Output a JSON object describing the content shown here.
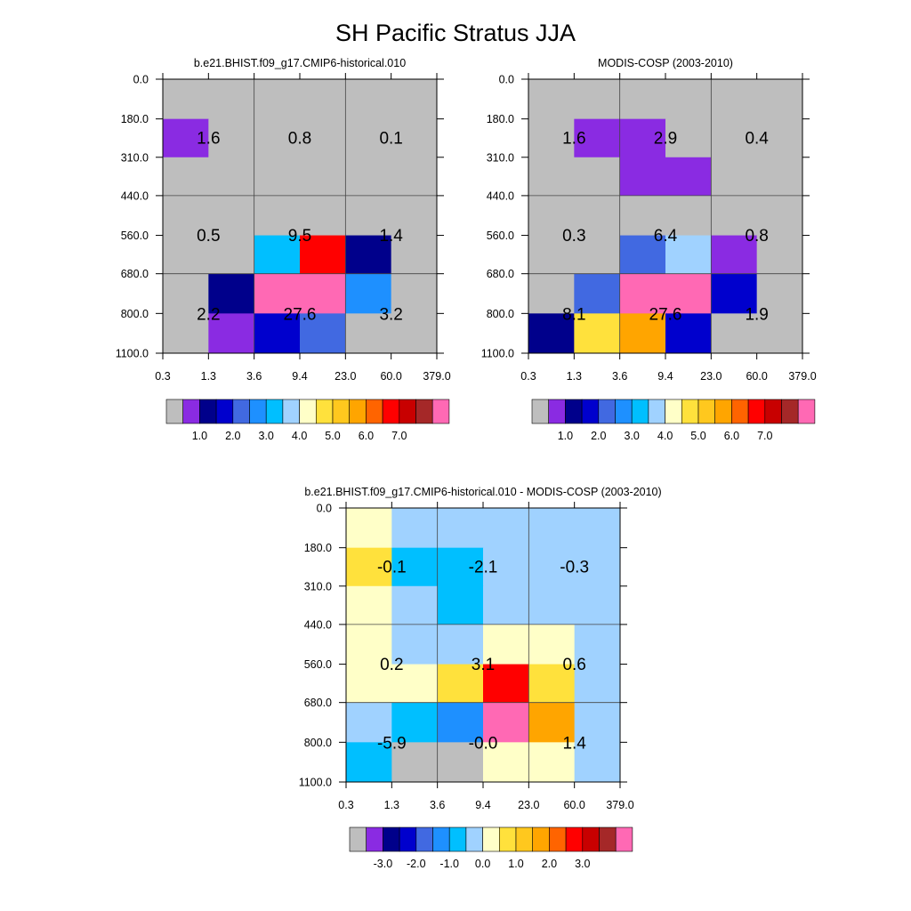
{
  "figure_title": "SH Pacific Stratus JJA",
  "chart_data": [
    {
      "type": "heatmap",
      "title": "b.e21.BHIST.f09_g17.CMIP6-historical.010",
      "x_ticks": [
        "0.3",
        "1.3",
        "3.6",
        "9.4",
        "23.0",
        "60.0",
        "379.0"
      ],
      "y_ticks": [
        "0.0",
        "180.0",
        "310.0",
        "440.0",
        "560.0",
        "680.0",
        "800.0",
        "1100.0"
      ],
      "cells": [
        [
          "missing",
          "missing",
          "missing",
          "missing",
          "missing",
          "missing"
        ],
        [
          "purple",
          "missing",
          "missing",
          "missing",
          "missing",
          "missing"
        ],
        [
          "missing",
          "missing",
          "missing",
          "missing",
          "missing",
          "missing"
        ],
        [
          "missing",
          "missing",
          "missing",
          "missing",
          "missing",
          "missing"
        ],
        [
          "missing",
          "missing",
          "deepskyblue",
          "red",
          "navy",
          "missing"
        ],
        [
          "missing",
          "navy",
          "pink",
          "pink",
          "dodgerblue",
          "missing"
        ],
        [
          "missing",
          "purple",
          "mediumblue",
          "royalblue",
          "missing",
          "missing"
        ]
      ],
      "annotations": [
        {
          "text": "1.6",
          "col": 0,
          "row": 0
        },
        {
          "text": "0.8",
          "col": 1,
          "row": 0
        },
        {
          "text": "0.1",
          "col": 2,
          "row": 0
        },
        {
          "text": "0.5",
          "col": 0,
          "row": 1
        },
        {
          "text": "9.5",
          "col": 1,
          "row": 1
        },
        {
          "text": "1.4",
          "col": 2,
          "row": 1
        },
        {
          "text": "2.2",
          "col": 0,
          "row": 2
        },
        {
          "text": "27.6",
          "col": 1,
          "row": 2
        },
        {
          "text": "3.2",
          "col": 2,
          "row": 2
        }
      ],
      "colorbar": {
        "colors": [
          "#bebebe",
          "#8a2be2",
          "#00008b",
          "#0000cd",
          "#4169e1",
          "#1e90ff",
          "#00bfff",
          "#a0d2ff",
          "#ffffc8",
          "#ffe13c",
          "#ffc81e",
          "#ffa500",
          "#ff6400",
          "#ff0000",
          "#c80000",
          "#a52828",
          "#ff69b4"
        ],
        "labels": [
          "1.0",
          "2.0",
          "3.0",
          "4.0",
          "5.0",
          "6.0",
          "7.0"
        ]
      }
    },
    {
      "type": "heatmap",
      "title": "MODIS-COSP (2003-2010)",
      "x_ticks": [
        "0.3",
        "1.3",
        "3.6",
        "9.4",
        "23.0",
        "60.0",
        "379.0"
      ],
      "y_ticks": [
        "0.0",
        "180.0",
        "310.0",
        "440.0",
        "560.0",
        "680.0",
        "800.0",
        "1100.0"
      ],
      "cells": [
        [
          "missing",
          "missing",
          "missing",
          "missing",
          "missing",
          "missing"
        ],
        [
          "missing",
          "purple",
          "purple",
          "missing",
          "missing",
          "missing"
        ],
        [
          "missing",
          "missing",
          "purple",
          "purple",
          "missing",
          "missing"
        ],
        [
          "missing",
          "missing",
          "missing",
          "missing",
          "missing",
          "missing"
        ],
        [
          "missing",
          "missing",
          "royalblue",
          "lightblue",
          "purple",
          "missing"
        ],
        [
          "missing",
          "royalblue",
          "pink",
          "pink",
          "mediumblue",
          "missing"
        ],
        [
          "navy",
          "gold",
          "orange",
          "mediumblue",
          "missing",
          "missing"
        ]
      ],
      "annotations": [
        {
          "text": "1.6",
          "col": 0,
          "row": 0
        },
        {
          "text": "2.9",
          "col": 1,
          "row": 0
        },
        {
          "text": "0.4",
          "col": 2,
          "row": 0
        },
        {
          "text": "0.3",
          "col": 0,
          "row": 1
        },
        {
          "text": "6.4",
          "col": 1,
          "row": 1
        },
        {
          "text": "0.8",
          "col": 2,
          "row": 1
        },
        {
          "text": "8.1",
          "col": 0,
          "row": 2
        },
        {
          "text": "27.6",
          "col": 1,
          "row": 2
        },
        {
          "text": "1.9",
          "col": 2,
          "row": 2
        }
      ],
      "colorbar": {
        "colors": [
          "#bebebe",
          "#8a2be2",
          "#00008b",
          "#0000cd",
          "#4169e1",
          "#1e90ff",
          "#00bfff",
          "#a0d2ff",
          "#ffffc8",
          "#ffe13c",
          "#ffc81e",
          "#ffa500",
          "#ff6400",
          "#ff0000",
          "#c80000",
          "#a52828",
          "#ff69b4"
        ],
        "labels": [
          "1.0",
          "2.0",
          "3.0",
          "4.0",
          "5.0",
          "6.0",
          "7.0"
        ]
      }
    },
    {
      "type": "heatmap",
      "title": "b.e21.BHIST.f09_g17.CMIP6-historical.010 - MODIS-COSP (2003-2010)",
      "x_ticks": [
        "0.3",
        "1.3",
        "3.6",
        "9.4",
        "23.0",
        "60.0",
        "379.0"
      ],
      "y_ticks": [
        "0.0",
        "180.0",
        "310.0",
        "440.0",
        "560.0",
        "680.0",
        "800.0",
        "1100.0"
      ],
      "cells": [
        [
          "lightyellow",
          "lightblue",
          "lightblue",
          "lightblue",
          "lightblue",
          "lightblue"
        ],
        [
          "gold",
          "deepskyblue",
          "deepskyblue",
          "lightblue",
          "lightblue",
          "lightblue"
        ],
        [
          "lightyellow",
          "lightblue",
          "deepskyblue",
          "lightblue",
          "lightblue",
          "lightblue"
        ],
        [
          "lightyellow",
          "lightblue",
          "lightblue",
          "lightyellow",
          "lightyellow",
          "lightblue"
        ],
        [
          "lightyellow",
          "lightyellow",
          "gold",
          "red",
          "gold",
          "lightblue"
        ],
        [
          "lightblue",
          "deepskyblue",
          "dodgerblue",
          "pink",
          "orange",
          "lightblue"
        ],
        [
          "deepskyblue",
          "missing",
          "missing",
          "lightyellow",
          "lightyellow",
          "lightblue"
        ]
      ],
      "annotations": [
        {
          "text": "-0.1",
          "col": 0,
          "row": 0
        },
        {
          "text": "-2.1",
          "col": 1,
          "row": 0
        },
        {
          "text": "-0.3",
          "col": 2,
          "row": 0
        },
        {
          "text": "0.2",
          "col": 0,
          "row": 1
        },
        {
          "text": "3.1",
          "col": 1,
          "row": 1
        },
        {
          "text": "0.6",
          "col": 2,
          "row": 1
        },
        {
          "text": "-5.9",
          "col": 0,
          "row": 2
        },
        {
          "text": "-0.0",
          "col": 1,
          "row": 2
        },
        {
          "text": "1.4",
          "col": 2,
          "row": 2
        }
      ],
      "colorbar": {
        "colors": [
          "#bebebe",
          "#8a2be2",
          "#00008b",
          "#0000cd",
          "#4169e1",
          "#1e90ff",
          "#00bfff",
          "#a0d2ff",
          "#ffffc8",
          "#ffe13c",
          "#ffc81e",
          "#ffa500",
          "#ff6400",
          "#ff0000",
          "#c80000",
          "#a52828",
          "#ff69b4"
        ],
        "labels": [
          "-3.0",
          "-2.0",
          "-1.0",
          "0.0",
          "1.0",
          "2.0",
          "3.0"
        ]
      }
    }
  ],
  "palette": {
    "missing": "#bebebe",
    "purple": "#8a2be2",
    "navy": "#00008b",
    "mediumblue": "#0000cd",
    "royalblue": "#4169e1",
    "dodgerblue": "#1e90ff",
    "deepskyblue": "#00bfff",
    "lightblue": "#a0d2ff",
    "lightyellow": "#ffffc8",
    "gold": "#ffe13c",
    "orange": "#ffa500",
    "red": "#ff0000",
    "pink": "#ff69b4"
  }
}
